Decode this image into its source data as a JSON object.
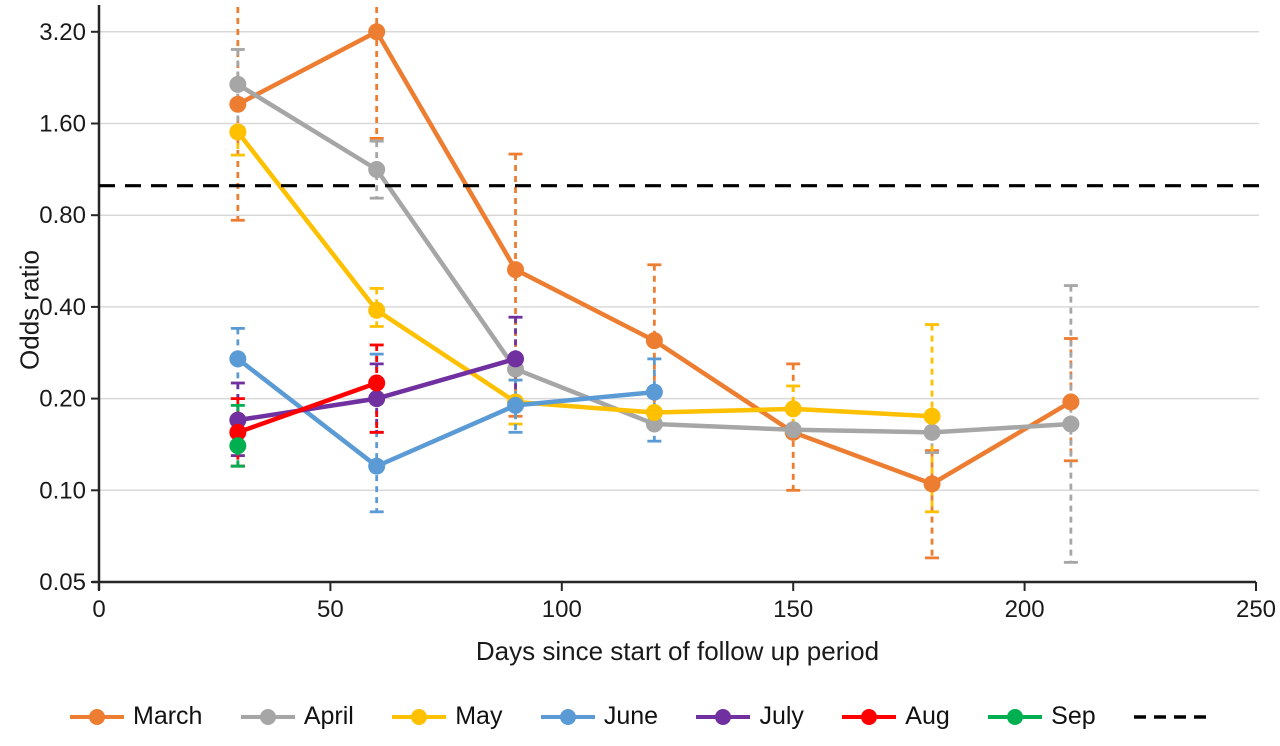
{
  "figure": {
    "title": "",
    "x_axis_title": "Days since start of follow up period",
    "y_axis_title": "Odds ratio"
  },
  "chart_data": {
    "type": "line",
    "title": "",
    "xlabel": "Days since start of follow up period",
    "ylabel": "Odds ratio",
    "x": {
      "label": "Days since start of follow up period",
      "range": [
        0,
        250
      ],
      "ticks": [
        0,
        50,
        100,
        150,
        200,
        250
      ]
    },
    "y": {
      "label": "Odds ratio",
      "scale": "log2",
      "range": [
        0.05,
        3.9
      ],
      "ticks": [
        "3.20",
        "1.60",
        "0.80",
        "0.40",
        "0.20",
        "0.10",
        "0.05"
      ],
      "tick_values": [
        3.2,
        1.6,
        0.8,
        0.4,
        0.2,
        0.1,
        0.05
      ],
      "grid": true
    },
    "reference_line": {
      "value": 1.0,
      "style": "dashed",
      "color": "#000000"
    },
    "error_bars": "dashed vertical whiskers with end caps, colored per series",
    "series": [
      {
        "name": "March",
        "color": "#ED7D31",
        "points": [
          {
            "x": 30,
            "y": 1.85,
            "lo": 0.77,
            "hi": 3.95
          },
          {
            "x": 60,
            "y": 3.2,
            "lo": 1.43,
            "hi": 4.1
          },
          {
            "x": 90,
            "y": 0.53,
            "lo": 0.175,
            "hi": 1.27
          },
          {
            "x": 120,
            "y": 0.31,
            "lo": 0.18,
            "hi": 0.55
          },
          {
            "x": 150,
            "y": 0.155,
            "lo": 0.1,
            "hi": 0.26
          },
          {
            "x": 180,
            "y": 0.105,
            "lo": 0.06,
            "hi": 0.135
          },
          {
            "x": 210,
            "y": 0.195,
            "lo": 0.125,
            "hi": 0.315
          }
        ]
      },
      {
        "name": "April",
        "color": "#A6A6A6",
        "points": [
          {
            "x": 30,
            "y": 2.15,
            "lo": 1.55,
            "hi": 2.8
          },
          {
            "x": 60,
            "y": 1.13,
            "lo": 0.91,
            "hi": 1.4
          },
          {
            "x": 90,
            "y": 0.25,
            "lo": null,
            "hi": null
          },
          {
            "x": 120,
            "y": 0.165,
            "lo": null,
            "hi": null
          },
          {
            "x": 150,
            "y": 0.158,
            "lo": null,
            "hi": null
          },
          {
            "x": 180,
            "y": 0.155,
            "lo": 0.133,
            "hi": null
          },
          {
            "x": 210,
            "y": 0.165,
            "lo": 0.058,
            "hi": 0.47
          }
        ]
      },
      {
        "name": "May",
        "color": "#FFC000",
        "points": [
          {
            "x": 30,
            "y": 1.5,
            "lo": 1.26,
            "hi": null
          },
          {
            "x": 60,
            "y": 0.39,
            "lo": 0.345,
            "hi": 0.46
          },
          {
            "x": 90,
            "y": 0.195,
            "lo": 0.165,
            "hi": 0.23
          },
          {
            "x": 120,
            "y": 0.18,
            "lo": null,
            "hi": null
          },
          {
            "x": 150,
            "y": 0.185,
            "lo": 0.16,
            "hi": 0.22
          },
          {
            "x": 180,
            "y": 0.175,
            "lo": 0.085,
            "hi": 0.35
          }
        ]
      },
      {
        "name": "June",
        "color": "#5B9BD5",
        "points": [
          {
            "x": 30,
            "y": 0.27,
            "lo": 0.12,
            "hi": 0.34
          },
          {
            "x": 60,
            "y": 0.12,
            "lo": 0.085,
            "hi": 0.28
          },
          {
            "x": 90,
            "y": 0.19,
            "lo": 0.155,
            "hi": 0.23
          },
          {
            "x": 120,
            "y": 0.21,
            "lo": 0.145,
            "hi": 0.27
          }
        ]
      },
      {
        "name": "July",
        "color": "#7030A0",
        "points": [
          {
            "x": 30,
            "y": 0.17,
            "lo": 0.13,
            "hi": 0.225
          },
          {
            "x": 60,
            "y": 0.2,
            "lo": 0.155,
            "hi": 0.26
          },
          {
            "x": 90,
            "y": 0.27,
            "lo": 0.19,
            "hi": 0.37
          }
        ]
      },
      {
        "name": "Aug",
        "color": "#FF0000",
        "points": [
          {
            "x": 30,
            "y": 0.155,
            "lo": 0.12,
            "hi": 0.2
          },
          {
            "x": 60,
            "y": 0.225,
            "lo": 0.155,
            "hi": 0.3
          }
        ]
      },
      {
        "name": "Sep",
        "color": "#00B050",
        "points": [
          {
            "x": 30,
            "y": 0.14,
            "lo": 0.12,
            "hi": 0.19
          }
        ]
      }
    ],
    "legend": {
      "position": "bottom",
      "entries": [
        {
          "label": "March",
          "color": "#ED7D31",
          "dashed": false
        },
        {
          "label": "April",
          "color": "#A6A6A6",
          "dashed": false
        },
        {
          "label": "May",
          "color": "#FFC000",
          "dashed": false
        },
        {
          "label": "June",
          "color": "#5B9BD5",
          "dashed": false
        },
        {
          "label": "July",
          "color": "#7030A0",
          "dashed": false
        },
        {
          "label": "Aug",
          "color": "#FF0000",
          "dashed": false
        },
        {
          "label": "Sep",
          "color": "#00B050",
          "dashed": false
        },
        {
          "label": "",
          "color": "#000000",
          "dashed": true
        }
      ]
    },
    "colors": {
      "gridline": "#D9D9D9",
      "axis": "#262626",
      "tick_text": "#1a1a1a"
    }
  }
}
